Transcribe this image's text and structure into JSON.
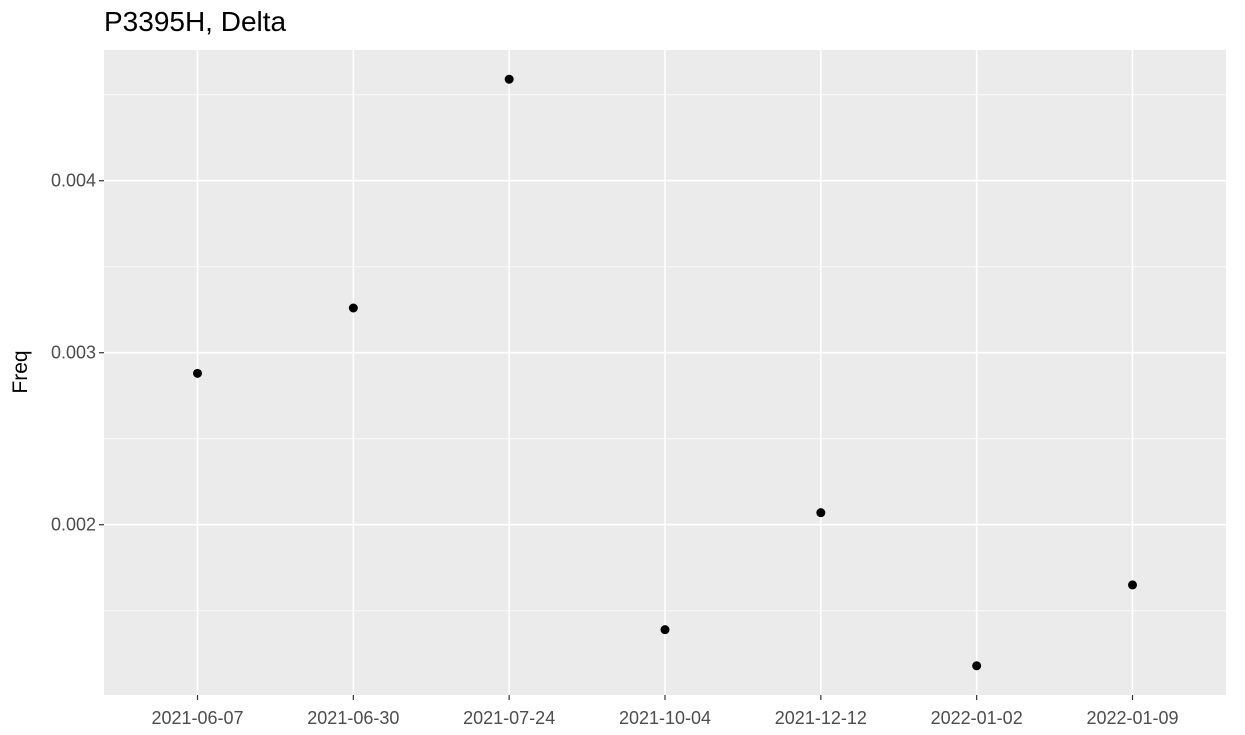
{
  "chart_data": {
    "type": "scatter",
    "title": "P3395H, Delta",
    "xlabel": "",
    "ylabel": "Freq",
    "x": [
      "2021-06-07",
      "2021-06-30",
      "2021-07-24",
      "2021-10-04",
      "2021-12-12",
      "2022-01-02",
      "2022-01-09"
    ],
    "y": [
      0.00288,
      0.00326,
      0.00459,
      0.00139,
      0.00207,
      0.00118,
      0.00165
    ],
    "ylim": [
      0.00101,
      0.00476
    ],
    "yticks": [
      0.002,
      0.003,
      0.004
    ],
    "ytick_labels": [
      "0.002",
      "0.003",
      "0.004"
    ],
    "ytick_minor": [
      0.0015,
      0.0025,
      0.0035,
      0.0045
    ],
    "x_axis_type": "discrete",
    "grid": true,
    "colors": {
      "panel_background": "#ebebeb",
      "grid": "#ffffff",
      "point": "#000000",
      "tick_label": "#4d4d4d",
      "tick": "#333333"
    }
  }
}
